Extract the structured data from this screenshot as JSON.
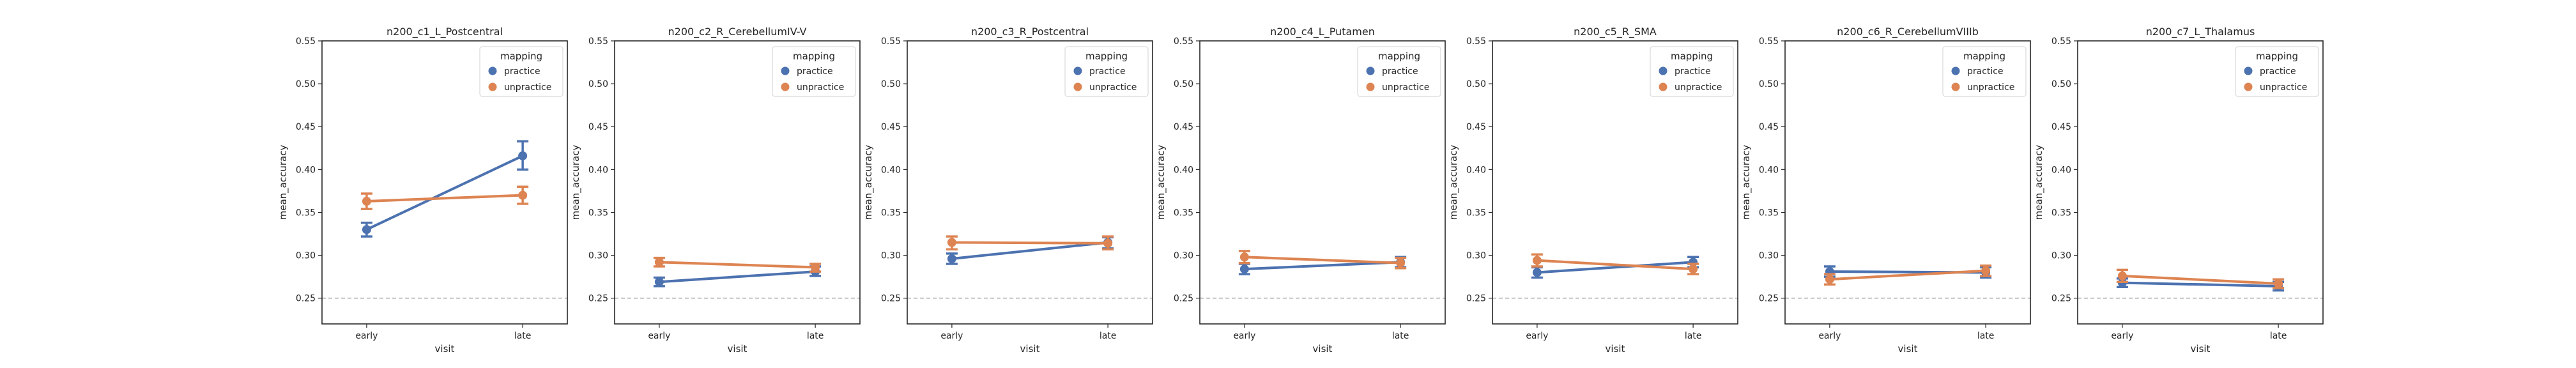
{
  "chart_data": [
    {
      "type": "point",
      "title": "n200_c1_L_Postcentral",
      "xlabel": "visit",
      "ylabel": "mean_accuracy",
      "categories": [
        "early",
        "late"
      ],
      "ylim": [
        0.22,
        0.55
      ],
      "yticks": [
        "0.25",
        "0.30",
        "0.35",
        "0.40",
        "0.45",
        "0.50",
        "0.55"
      ],
      "reference_line": 0.25,
      "legend": {
        "title": "mapping",
        "placement": "upper-right"
      },
      "series": [
        {
          "name": "practice",
          "color": "#4c72b0",
          "values": [
            0.33,
            0.416
          ],
          "err_low": [
            0.322,
            0.4
          ],
          "err_high": [
            0.338,
            0.433
          ]
        },
        {
          "name": "unpractice",
          "color": "#dd8452",
          "values": [
            0.363,
            0.37
          ],
          "err_low": [
            0.354,
            0.36
          ],
          "err_high": [
            0.372,
            0.38
          ]
        }
      ]
    },
    {
      "type": "point",
      "title": "n200_c2_R_CerebellumIV-V",
      "xlabel": "visit",
      "ylabel": "mean_accuracy",
      "categories": [
        "early",
        "late"
      ],
      "ylim": [
        0.22,
        0.55
      ],
      "yticks": [
        "0.25",
        "0.30",
        "0.35",
        "0.40",
        "0.45",
        "0.50",
        "0.55"
      ],
      "reference_line": 0.25,
      "legend": {
        "title": "mapping",
        "placement": "upper-right"
      },
      "series": [
        {
          "name": "practice",
          "color": "#4c72b0",
          "values": [
            0.269,
            0.281
          ],
          "err_low": [
            0.264,
            0.276
          ],
          "err_high": [
            0.274,
            0.287
          ]
        },
        {
          "name": "unpractice",
          "color": "#dd8452",
          "values": [
            0.292,
            0.286
          ],
          "err_low": [
            0.287,
            0.281
          ],
          "err_high": [
            0.297,
            0.29
          ]
        }
      ]
    },
    {
      "type": "point",
      "title": "n200_c3_R_Postcentral",
      "xlabel": "visit",
      "ylabel": "mean_accuracy",
      "categories": [
        "early",
        "late"
      ],
      "ylim": [
        0.22,
        0.55
      ],
      "yticks": [
        "0.25",
        "0.30",
        "0.35",
        "0.40",
        "0.45",
        "0.50",
        "0.55"
      ],
      "reference_line": 0.25,
      "legend": {
        "title": "mapping",
        "placement": "upper-right"
      },
      "series": [
        {
          "name": "practice",
          "color": "#4c72b0",
          "values": [
            0.296,
            0.315
          ],
          "err_low": [
            0.29,
            0.308
          ],
          "err_high": [
            0.302,
            0.321
          ]
        },
        {
          "name": "unpractice",
          "color": "#dd8452",
          "values": [
            0.315,
            0.314
          ],
          "err_low": [
            0.307,
            0.307
          ],
          "err_high": [
            0.322,
            0.322
          ]
        }
      ]
    },
    {
      "type": "point",
      "title": "n200_c4_L_Putamen",
      "xlabel": "visit",
      "ylabel": "mean_accuracy",
      "categories": [
        "early",
        "late"
      ],
      "ylim": [
        0.22,
        0.55
      ],
      "yticks": [
        "0.25",
        "0.30",
        "0.35",
        "0.40",
        "0.45",
        "0.50",
        "0.55"
      ],
      "reference_line": 0.25,
      "legend": {
        "title": "mapping",
        "placement": "upper-right"
      },
      "series": [
        {
          "name": "practice",
          "color": "#4c72b0",
          "values": [
            0.284,
            0.292
          ],
          "err_low": [
            0.278,
            0.286
          ],
          "err_high": [
            0.29,
            0.298
          ]
        },
        {
          "name": "unpractice",
          "color": "#dd8452",
          "values": [
            0.298,
            0.291
          ],
          "err_low": [
            0.291,
            0.285
          ],
          "err_high": [
            0.305,
            0.297
          ]
        }
      ]
    },
    {
      "type": "point",
      "title": "n200_c5_R_SMA",
      "xlabel": "visit",
      "ylabel": "mean_accuracy",
      "categories": [
        "early",
        "late"
      ],
      "ylim": [
        0.22,
        0.55
      ],
      "yticks": [
        "0.25",
        "0.30",
        "0.35",
        "0.40",
        "0.45",
        "0.50",
        "0.55"
      ],
      "reference_line": 0.25,
      "legend": {
        "title": "mapping",
        "placement": "upper-right"
      },
      "series": [
        {
          "name": "practice",
          "color": "#4c72b0",
          "values": [
            0.28,
            0.292
          ],
          "err_low": [
            0.274,
            0.286
          ],
          "err_high": [
            0.286,
            0.298
          ]
        },
        {
          "name": "unpractice",
          "color": "#dd8452",
          "values": [
            0.294,
            0.284
          ],
          "err_low": [
            0.287,
            0.278
          ],
          "err_high": [
            0.301,
            0.29
          ]
        }
      ]
    },
    {
      "type": "point",
      "title": "n200_c6_R_CerebellumVIIIb",
      "xlabel": "visit",
      "ylabel": "mean_accuracy",
      "categories": [
        "early",
        "late"
      ],
      "ylim": [
        0.22,
        0.55
      ],
      "yticks": [
        "0.25",
        "0.30",
        "0.35",
        "0.40",
        "0.45",
        "0.50",
        "0.55"
      ],
      "reference_line": 0.25,
      "legend": {
        "title": "mapping",
        "placement": "upper-right"
      },
      "series": [
        {
          "name": "practice",
          "color": "#4c72b0",
          "values": [
            0.281,
            0.28
          ],
          "err_low": [
            0.275,
            0.274
          ],
          "err_high": [
            0.287,
            0.286
          ]
        },
        {
          "name": "unpractice",
          "color": "#dd8452",
          "values": [
            0.272,
            0.282
          ],
          "err_low": [
            0.266,
            0.276
          ],
          "err_high": [
            0.278,
            0.288
          ]
        }
      ]
    },
    {
      "type": "point",
      "title": "n200_c7_L_Thalamus",
      "xlabel": "visit",
      "ylabel": "mean_accuracy",
      "categories": [
        "early",
        "late"
      ],
      "ylim": [
        0.22,
        0.55
      ],
      "yticks": [
        "0.25",
        "0.30",
        "0.35",
        "0.40",
        "0.45",
        "0.50",
        "0.55"
      ],
      "reference_line": 0.25,
      "legend": {
        "title": "mapping",
        "placement": "upper-right"
      },
      "series": [
        {
          "name": "practice",
          "color": "#4c72b0",
          "values": [
            0.268,
            0.264
          ],
          "err_low": [
            0.263,
            0.259
          ],
          "err_high": [
            0.273,
            0.269
          ]
        },
        {
          "name": "unpractice",
          "color": "#dd8452",
          "values": [
            0.276,
            0.267
          ],
          "err_low": [
            0.269,
            0.262
          ],
          "err_high": [
            0.283,
            0.272
          ]
        }
      ]
    }
  ]
}
